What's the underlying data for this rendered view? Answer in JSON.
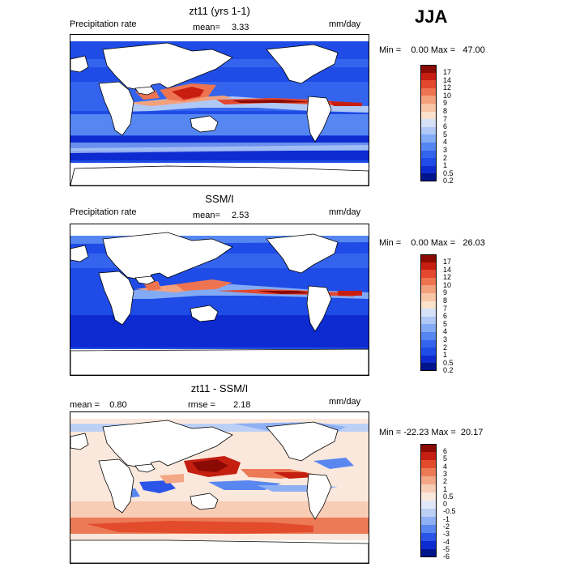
{
  "season": "JJA",
  "colors": {
    "abs_scale": [
      "#00148c",
      "#0d2bd0",
      "#1f4ce6",
      "#3464ee",
      "#5586f2",
      "#83aaf4",
      "#afc8f6",
      "#d6e1f8",
      "#fbe2cc",
      "#f8c6a4",
      "#f3a07c",
      "#ee7451",
      "#e4482e",
      "#c81e12",
      "#8c0a04"
    ],
    "diff_scale": [
      "#00148c",
      "#0d2bd0",
      "#2a55e8",
      "#5a86f0",
      "#8fb0f4",
      "#bcd0f6",
      "#e0e8f8",
      "#fbe8dc",
      "#f8cdb6",
      "#f3a786",
      "#ec7a56",
      "#e24c2c",
      "#c41f10",
      "#8c0a04"
    ]
  },
  "panels": [
    {
      "title": "zt11 (yrs 1-1)",
      "left_label": "Precipitation rate",
      "stat_label": "mean=",
      "stat_value": "3.33",
      "unit": "mm/day",
      "minmax": "Min =    0.00 Max =   47.00",
      "colorbar": [
        "17",
        "14",
        "12",
        "10",
        "9",
        "8",
        "7",
        "6",
        "5",
        "4",
        "3",
        "2",
        "1",
        "0.5",
        "0.2"
      ],
      "kind": "model"
    },
    {
      "title": "SSM/I",
      "left_label": "Precipitation rate",
      "stat_label": "mean=",
      "stat_value": "2.53",
      "unit": "mm/day",
      "minmax": "Min =    0.00 Max =   26.03",
      "colorbar": [
        "17",
        "14",
        "12",
        "10",
        "9",
        "8",
        "7",
        "6",
        "5",
        "4",
        "3",
        "2",
        "1",
        "0.5",
        "0.2"
      ],
      "kind": "obs"
    },
    {
      "title": "zt11 - SSM/I",
      "left_label": "mean =    0.80",
      "stat_label": "rmse =",
      "stat_value": "2.18",
      "unit": "mm/day",
      "minmax": "Min = -22.23 Max =  20.17",
      "colorbar": [
        "6",
        "5",
        "4",
        "3",
        "2",
        "1",
        "0.5",
        "0",
        "-0.5",
        "-1",
        "-2",
        "-3",
        "-4",
        "-5",
        "-6"
      ],
      "kind": "diff"
    }
  ]
}
